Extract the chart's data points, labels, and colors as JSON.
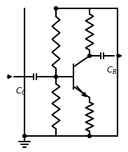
{
  "bg_color": "#ffffff",
  "line_color": "#000000",
  "line_width": 1.5,
  "fig_width": 1.83,
  "fig_height": 2.18,
  "dpi": 100
}
